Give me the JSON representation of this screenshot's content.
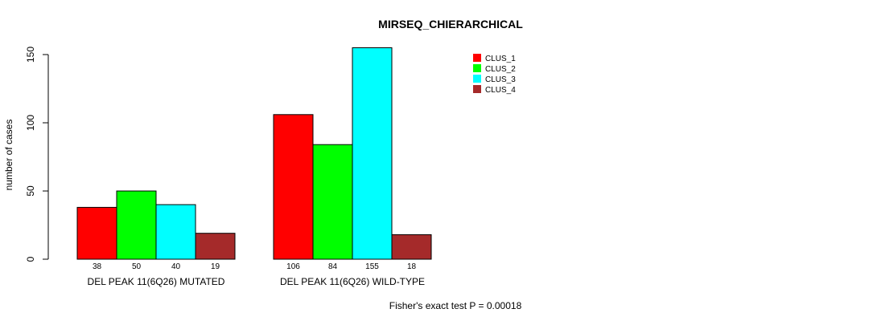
{
  "chart_data": {
    "type": "bar",
    "title": "MIRSEQ_CHIERARCHICAL",
    "ylabel": "number of cases",
    "xlabel": "",
    "ylim": [
      0,
      150
    ],
    "yticks": [
      0,
      50,
      100,
      150
    ],
    "groups": [
      "DEL PEAK 11(6Q26) MUTATED",
      "DEL PEAK 11(6Q26) WILD-TYPE"
    ],
    "series": [
      {
        "name": "CLUS_1",
        "color": "#ff0000",
        "values": [
          38,
          106
        ]
      },
      {
        "name": "CLUS_2",
        "color": "#00ff00",
        "values": [
          50,
          84
        ]
      },
      {
        "name": "CLUS_3",
        "color": "#00ffff",
        "values": [
          40,
          155
        ]
      },
      {
        "name": "CLUS_4",
        "color": "#a52a2a",
        "values": [
          19,
          18
        ]
      }
    ],
    "legend_position": "top-right",
    "footnote": "Fisher's exact test P = 0.00018"
  }
}
